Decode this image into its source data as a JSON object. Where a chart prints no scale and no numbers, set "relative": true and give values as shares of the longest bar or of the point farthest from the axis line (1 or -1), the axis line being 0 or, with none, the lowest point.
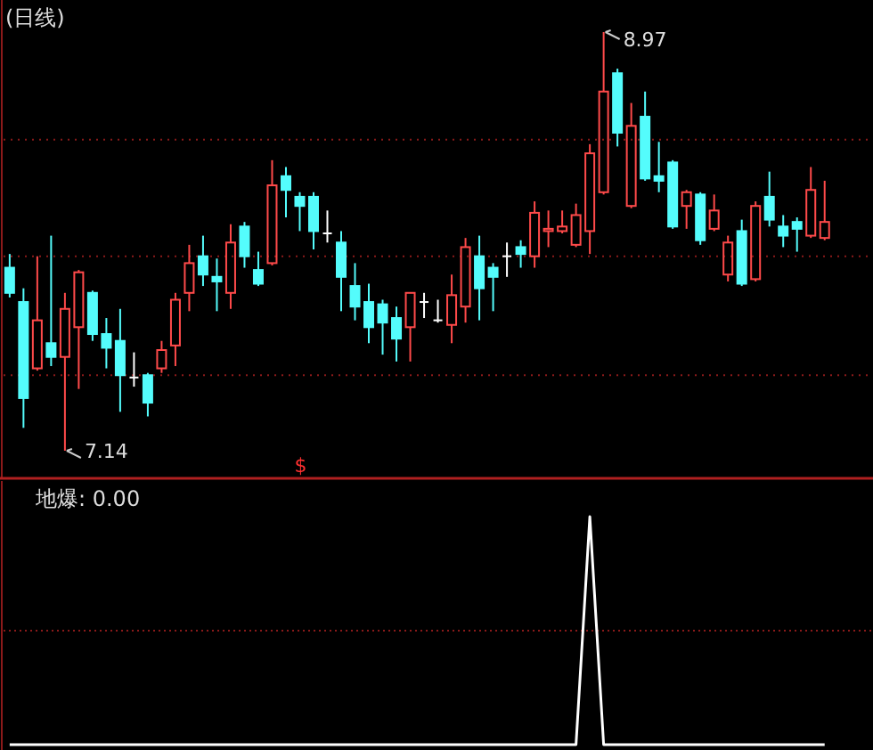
{
  "chart_data": [
    {
      "type": "candlestick",
      "title": "(日线)",
      "grid": "y",
      "categories": [
        null,
        null,
        null,
        null,
        null,
        null,
        null,
        null,
        null,
        null,
        null,
        null,
        null,
        null,
        null,
        null,
        null,
        null,
        null,
        null,
        null,
        null,
        null,
        null,
        null,
        null,
        null,
        null,
        null,
        null,
        null,
        null,
        null,
        null,
        null,
        null,
        null,
        null,
        null,
        null,
        null,
        null,
        null,
        null,
        null,
        null,
        null,
        null,
        null,
        null,
        null,
        null,
        null,
        null,
        null,
        null,
        null,
        null,
        null,
        null
      ],
      "ohlc": [
        [
          7.94,
          8.0,
          7.81,
          7.83
        ],
        [
          7.79,
          7.85,
          7.24,
          7.37
        ],
        [
          7.5,
          7.99,
          7.49,
          7.71
        ],
        [
          7.61,
          8.08,
          7.51,
          7.55
        ],
        [
          7.55,
          7.83,
          7.14,
          7.76
        ],
        [
          7.68,
          7.93,
          7.41,
          7.92
        ],
        [
          7.83,
          7.84,
          7.62,
          7.65
        ],
        [
          7.65,
          7.72,
          7.5,
          7.59
        ],
        [
          7.62,
          7.76,
          7.31,
          7.47
        ],
        [
          7.46,
          7.57,
          7.42,
          7.46
        ],
        [
          7.47,
          7.48,
          7.29,
          7.35
        ],
        [
          7.5,
          7.62,
          7.48,
          7.58
        ],
        [
          7.6,
          7.83,
          7.51,
          7.8
        ],
        [
          7.83,
          8.04,
          7.75,
          7.96
        ],
        [
          7.99,
          8.08,
          7.86,
          7.91
        ],
        [
          7.9,
          7.98,
          7.75,
          7.88
        ],
        [
          7.83,
          8.13,
          7.76,
          8.05
        ],
        [
          8.12,
          8.14,
          7.94,
          7.99
        ],
        [
          7.93,
          8.01,
          7.86,
          7.87
        ],
        [
          7.96,
          8.41,
          7.95,
          8.3
        ],
        [
          8.34,
          8.38,
          8.16,
          8.28
        ],
        [
          8.25,
          8.27,
          8.1,
          8.21
        ],
        [
          8.25,
          8.27,
          8.02,
          8.1
        ],
        [
          8.09,
          8.19,
          8.05,
          8.09
        ],
        [
          8.05,
          8.1,
          7.75,
          7.9
        ],
        [
          7.86,
          7.96,
          7.71,
          7.77
        ],
        [
          7.79,
          7.87,
          7.61,
          7.68
        ],
        [
          7.78,
          7.8,
          7.56,
          7.7
        ],
        [
          7.72,
          7.77,
          7.53,
          7.63
        ],
        [
          7.68,
          7.83,
          7.53,
          7.83
        ],
        [
          7.79,
          7.83,
          7.72,
          7.79
        ],
        [
          7.71,
          7.8,
          7.7,
          7.71
        ],
        [
          7.69,
          7.91,
          7.61,
          7.82
        ],
        [
          7.77,
          8.07,
          7.7,
          8.03
        ],
        [
          7.99,
          8.08,
          7.71,
          7.85
        ],
        [
          7.94,
          7.96,
          7.75,
          7.9
        ],
        [
          7.99,
          8.05,
          7.9,
          7.99
        ],
        [
          8.03,
          8.06,
          7.94,
          8.0
        ],
        [
          7.99,
          8.23,
          7.94,
          8.18
        ],
        [
          8.1,
          8.19,
          8.03,
          8.11
        ],
        [
          8.1,
          8.19,
          8.09,
          8.12
        ],
        [
          8.04,
          8.22,
          8.03,
          8.17
        ],
        [
          8.1,
          8.48,
          8.0,
          8.44
        ],
        [
          8.27,
          8.97,
          8.26,
          8.71
        ],
        [
          8.79,
          8.81,
          8.47,
          8.53
        ],
        [
          8.21,
          8.66,
          8.2,
          8.56
        ],
        [
          8.6,
          8.71,
          8.32,
          8.33
        ],
        [
          8.34,
          8.49,
          8.27,
          8.32
        ],
        [
          8.4,
          8.41,
          8.11,
          8.12
        ],
        [
          8.21,
          8.28,
          8.11,
          8.27
        ],
        [
          8.26,
          8.27,
          8.04,
          8.06
        ],
        [
          8.11,
          8.26,
          8.1,
          8.19
        ],
        [
          7.91,
          8.08,
          7.88,
          8.05
        ],
        [
          8.1,
          8.15,
          7.86,
          7.87
        ],
        [
          7.89,
          8.23,
          7.88,
          8.21
        ],
        [
          8.25,
          8.36,
          8.12,
          8.15
        ],
        [
          8.12,
          8.17,
          8.03,
          8.08
        ],
        [
          8.14,
          8.16,
          8.01,
          8.11
        ],
        [
          8.08,
          8.38,
          8.07,
          8.28
        ],
        [
          8.07,
          8.32,
          8.06,
          8.14
        ]
      ],
      "colors": [
        "#54fcfc",
        "#54fcfc",
        "#ff4a4a",
        "#54fcfc",
        "#ff4a4a",
        "#ff4a4a",
        "#54fcfc",
        "#54fcfc",
        "#54fcfc",
        "#ffffff",
        "#54fcfc",
        "#ff4a4a",
        "#ff4a4a",
        "#ff4a4a",
        "#54fcfc",
        "#54fcfc",
        "#ff4a4a",
        "#54fcfc",
        "#54fcfc",
        "#ff4a4a",
        "#54fcfc",
        "#54fcfc",
        "#54fcfc",
        "#ffffff",
        "#54fcfc",
        "#54fcfc",
        "#54fcfc",
        "#54fcfc",
        "#54fcfc",
        "#ff4a4a",
        "#ffffff",
        "#ffffff",
        "#ff4a4a",
        "#ff4a4a",
        "#54fcfc",
        "#54fcfc",
        "#ffffff",
        "#54fcfc",
        "#ff4a4a",
        "#ff4a4a",
        "#ff4a4a",
        "#ff4a4a",
        "#ff4a4a",
        "#ff4a4a",
        "#54fcfc",
        "#ff4a4a",
        "#54fcfc",
        "#54fcfc",
        "#54fcfc",
        "#ff4a4a",
        "#54fcfc",
        "#ff4a4a",
        "#ff4a4a",
        "#54fcfc",
        "#ff4a4a",
        "#54fcfc",
        "#54fcfc",
        "#54fcfc",
        "#ff4a4a",
        "#ff4a4a"
      ],
      "yticks": [
        {
          "value": 7.47,
          "label": null
        },
        {
          "value": 7.99,
          "label": null
        },
        {
          "value": 8.5,
          "label": null
        }
      ],
      "annotations": [
        "8.97",
        "7.14",
        "$"
      ]
    },
    {
      "type": "line",
      "title": "地爆: 0.00",
      "relative": true,
      "categories": [
        null,
        null,
        null,
        null,
        null,
        null,
        null,
        null,
        null,
        null,
        null,
        null,
        null,
        null,
        null,
        null,
        null,
        null,
        null,
        null,
        null,
        null,
        null,
        null,
        null,
        null,
        null,
        null,
        null,
        null,
        null,
        null,
        null,
        null,
        null,
        null,
        null,
        null,
        null,
        null,
        null,
        null,
        null,
        null,
        null,
        null,
        null,
        null,
        null,
        null,
        null,
        null,
        null,
        null,
        null,
        null,
        null,
        null,
        null,
        null
      ],
      "series": [
        {
          "color": "#ffffff",
          "values": [
            0,
            0,
            0,
            0,
            0,
            0,
            0,
            0,
            0,
            0,
            0,
            0,
            0,
            0,
            0,
            0,
            0,
            0,
            0,
            0,
            0,
            0,
            0,
            0,
            0,
            0,
            0,
            0,
            0,
            0,
            0,
            0,
            0,
            0,
            0,
            0,
            0,
            0,
            0,
            0,
            0,
            0,
            1,
            0,
            0,
            0,
            0,
            0,
            0,
            0,
            0,
            0,
            0,
            0,
            0,
            0,
            0,
            0,
            0,
            0
          ]
        }
      ],
      "ref_lines": [
        {
          "axis": "y",
          "value": 0.5,
          "color": "#8b1a1a",
          "line_style": "dotted"
        }
      ]
    }
  ]
}
